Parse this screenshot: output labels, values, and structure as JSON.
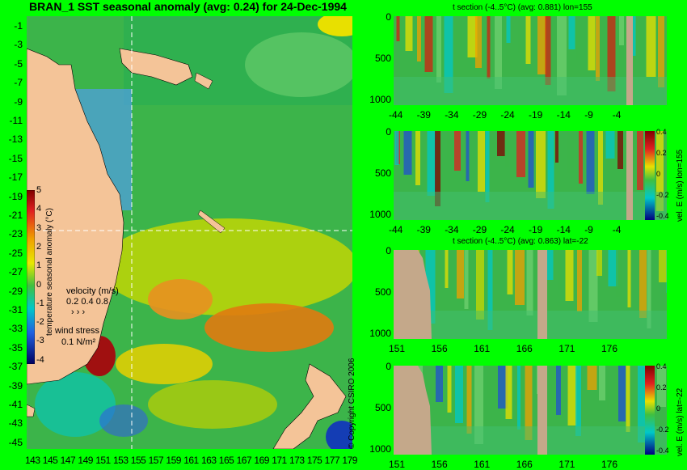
{
  "title": "BRAN_1  SST seasonal anomaly (avg: 0.24) for 24-Dec-1994",
  "map": {
    "lon_ticks": [
      "143",
      "145",
      "147",
      "149",
      "151",
      "153",
      "155",
      "157",
      "159",
      "161",
      "163",
      "165",
      "167",
      "169",
      "171",
      "173",
      "175",
      "177",
      "179"
    ],
    "lat_ticks": [
      "-1",
      "-3",
      "-5",
      "-7",
      "-9",
      "-11",
      "-13",
      "-15",
      "-17",
      "-19",
      "-21",
      "-23",
      "-25",
      "-27",
      "-29",
      "-31",
      "-33",
      "-35",
      "-37",
      "-39",
      "-41",
      "-43",
      "-45"
    ],
    "colorbar": {
      "label": "temperature seasonal anomaly (°C)",
      "ticks": [
        "5",
        "4",
        "3",
        "2",
        "1",
        "0",
        "-1",
        "-2",
        "-3",
        "-4"
      ]
    },
    "velocity_legend": {
      "title": "velocity (m/s)",
      "values": "0.2 0.4 0.8"
    },
    "wind_legend": {
      "title": "wind stress",
      "value": "0.1 N/m²"
    },
    "copyright": "© Copyright CSIRO 2006"
  },
  "sections": [
    {
      "title": "t section (-4..5°C) (avg: 0.881) lon=155",
      "x_ticks": [
        "-44",
        "-39",
        "-34",
        "-29",
        "-24",
        "-19",
        "-14",
        "-9",
        "-4"
      ],
      "y_ticks": [
        "0",
        "500",
        "1000"
      ]
    },
    {
      "title": "",
      "x_ticks": [
        "-44",
        "-39",
        "-34",
        "-29",
        "-24",
        "-19",
        "-14",
        "-9",
        "-4"
      ],
      "y_ticks": [
        "0",
        "500",
        "1000"
      ],
      "colorbar_label": "vel. E (m/s) lon=155",
      "colorbar_ticks": [
        "0.4",
        "0.2",
        "0",
        "-0.2",
        "-0.4"
      ]
    },
    {
      "title": "t section (-4..5°C) (avg: 0.863) lat=-22",
      "x_ticks": [
        "151",
        "156",
        "161",
        "166",
        "171",
        "176"
      ],
      "y_ticks": [
        "0",
        "500",
        "1000"
      ]
    },
    {
      "title": "",
      "x_ticks": [
        "151",
        "156",
        "161",
        "166",
        "171",
        "176"
      ],
      "y_ticks": [
        "0",
        "500",
        "1000"
      ],
      "colorbar_label": "vel. E (m/s) lat=-22",
      "colorbar_ticks": [
        "0.4",
        "0.2",
        "0",
        "-0.2",
        "-0.4"
      ]
    }
  ],
  "chart_data": [
    {
      "type": "heatmap",
      "title": "BRAN_1  SST seasonal anomaly (avg: 0.24) for 24-Dec-1994",
      "x_range": [
        143,
        180
      ],
      "y_range": [
        -45,
        0
      ],
      "color_range": [
        -4,
        5
      ],
      "colorbar_label": "temperature seasonal anomaly (°C)",
      "section_lines": {
        "lon": 155,
        "lat": -22
      }
    },
    {
      "type": "heatmap",
      "title": "t section (-4..5°C) (avg: 0.881) lon=155",
      "x_range": [
        -46,
        0
      ],
      "y_range": [
        1050,
        0
      ]
    },
    {
      "type": "heatmap",
      "title": "",
      "x_range": [
        -46,
        0
      ],
      "y_range": [
        1050,
        0
      ],
      "colorbar_label": "vel. E (m/s) lon=155",
      "color_range": [
        -0.4,
        0.4
      ]
    },
    {
      "type": "heatmap",
      "title": "t section (-4..5°C) (avg: 0.863) lat=-22",
      "x_range": [
        150,
        180
      ],
      "y_range": [
        1050,
        0
      ]
    },
    {
      "type": "heatmap",
      "title": "",
      "x_range": [
        150,
        180
      ],
      "y_range": [
        1050,
        0
      ],
      "colorbar_label": "vel. E (m/s) lat=-22",
      "color_range": [
        -0.4,
        0.4
      ]
    }
  ]
}
